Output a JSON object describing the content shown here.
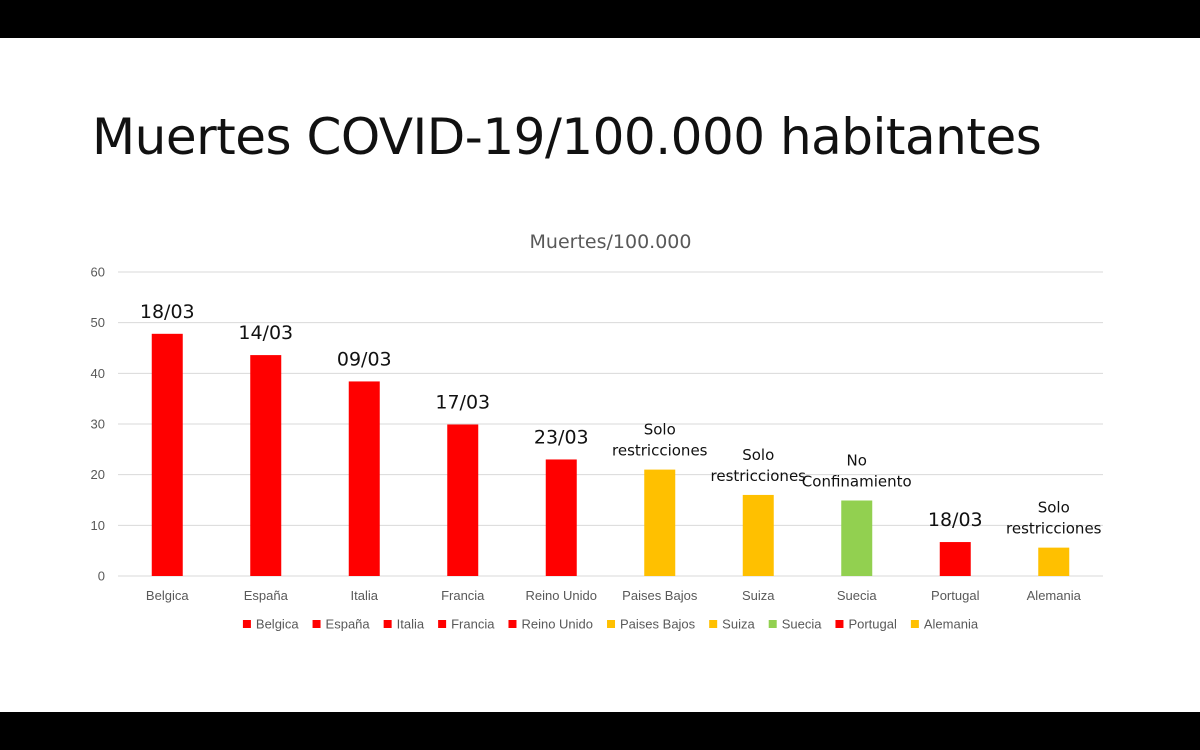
{
  "slide": {
    "title": "Muertes COVID-19/100.000 habitantes"
  },
  "colors": {
    "red": "#FF0000",
    "yellow": "#FFC000",
    "green": "#92D050",
    "grid": "#D9D9D9",
    "axis_text": "#595959",
    "frame": "#000000",
    "background": "#FFFFFF"
  },
  "chart_data": {
    "type": "bar",
    "title": "Muertes/100.000",
    "xlabel": "",
    "ylabel": "",
    "ylim": [
      0,
      60
    ],
    "yticks": [
      0,
      10,
      20,
      30,
      40,
      50,
      60
    ],
    "grid": true,
    "legend_position": "bottom",
    "categories": [
      "Belgica",
      "España",
      "Italia",
      "Francia",
      "Reino Unido",
      "Paises Bajos",
      "Suiza",
      "Suecia",
      "Portugal",
      "Alemania"
    ],
    "values": [
      47.8,
      43.6,
      38.4,
      29.9,
      23.0,
      21.0,
      16.0,
      14.9,
      6.7,
      5.6
    ],
    "bar_colors": [
      "red",
      "red",
      "red",
      "red",
      "red",
      "yellow",
      "yellow",
      "green",
      "red",
      "yellow"
    ],
    "annotations": [
      [
        "18/03"
      ],
      [
        "14/03"
      ],
      [
        "09/03"
      ],
      [
        "17/03"
      ],
      [
        "23/03"
      ],
      [
        "Solo",
        "restricciones"
      ],
      [
        "Solo",
        "restricciones"
      ],
      [
        "No",
        "Confinamiento"
      ],
      [
        "18/03"
      ],
      [
        "Solo",
        "restricciones"
      ]
    ],
    "legend": [
      "Belgica",
      "España",
      "Italia",
      "Francia",
      "Reino Unido",
      "Paises Bajos",
      "Suiza",
      "Suecia",
      "Portugal",
      "Alemania"
    ]
  }
}
